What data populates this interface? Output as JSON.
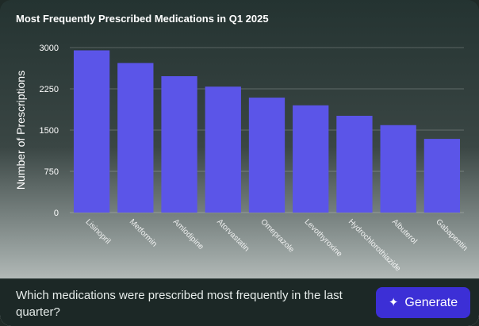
{
  "chart": {
    "title": "Most Frequently Prescribed Medications in Q1 2025"
  },
  "chart_data": {
    "type": "bar",
    "title": "Most Frequently Prescribed Medications in Q1 2025",
    "xlabel": "",
    "ylabel": "Number of Prescriptions",
    "categories": [
      "Lisinopril",
      "Metformin",
      "Amlodipine",
      "Atorvastatin",
      "Omeprazole",
      "Levothyroxine",
      "Hydrochlorothiazide",
      "Albuterol",
      "Gabapentin"
    ],
    "values": [
      2950,
      2720,
      2480,
      2290,
      2090,
      1950,
      1760,
      1590,
      1340
    ],
    "yticks": [
      0,
      750,
      1500,
      2250,
      3000
    ],
    "ylim": [
      0,
      3000
    ],
    "grid": true,
    "bar_color": "#5b55e8"
  },
  "query": {
    "text": "Which medications were prescribed most frequently in the last quarter?"
  },
  "generate_button": {
    "label": "Generate",
    "icon": "sparkle-icon"
  },
  "colors": {
    "bar": "#5b55e8",
    "button": "#3c2fd6"
  }
}
